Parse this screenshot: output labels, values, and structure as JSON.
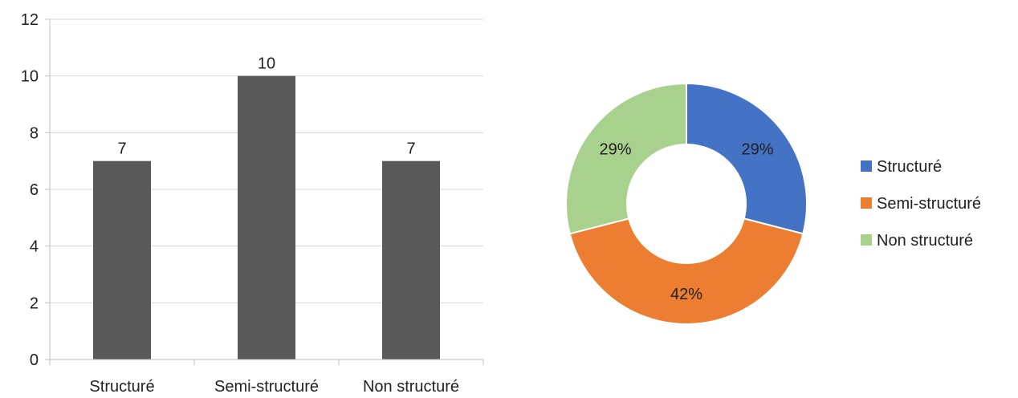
{
  "chart_data": [
    {
      "type": "bar",
      "categories": [
        "Structuré",
        "Semi-structuré",
        "Non structuré"
      ],
      "values": [
        7,
        10,
        7
      ],
      "ylim": [
        0,
        12
      ],
      "yticks": [
        0,
        2,
        4,
        6,
        8,
        10,
        12
      ],
      "grid": true,
      "data_labels": true,
      "colors": {
        "bar": "#595959",
        "grid": "#d9d9d9",
        "axis": "#bfbfbf"
      }
    },
    {
      "type": "pie",
      "style": "donut",
      "labels": [
        "Structuré",
        "Semi-structuré",
        "Non structuré"
      ],
      "values": [
        29,
        42,
        29
      ],
      "value_labels": [
        "29%",
        "42%",
        "29%"
      ],
      "colors": [
        "#4472c4",
        "#ed7d31",
        "#a9d18e"
      ],
      "legend_position": "right"
    }
  ]
}
